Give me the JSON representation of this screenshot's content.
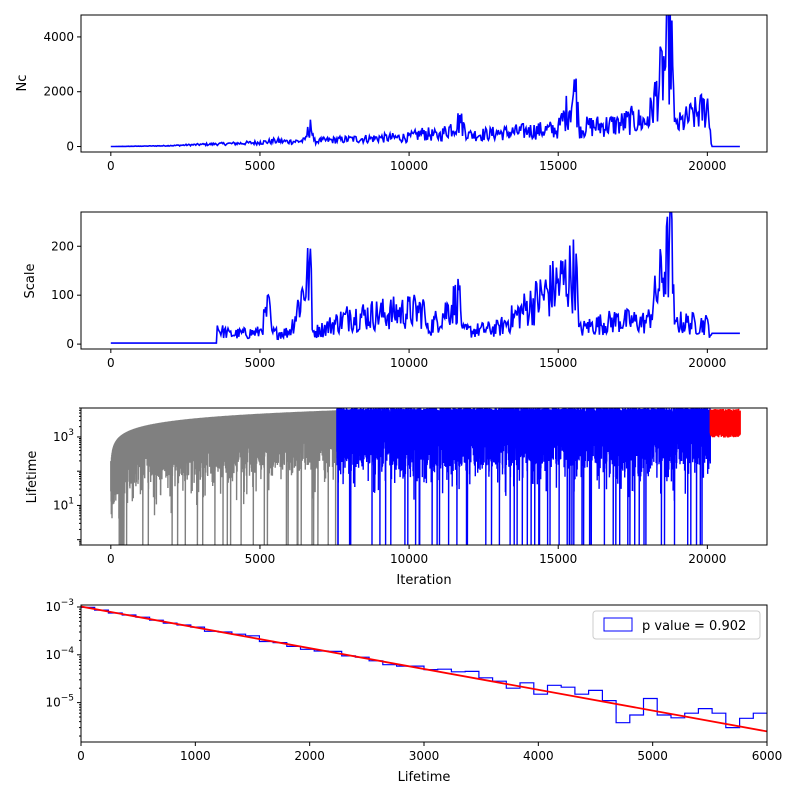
{
  "chart_data": [
    {
      "type": "line",
      "ylabel": "Nc",
      "xlim": [
        -1000,
        22000
      ],
      "ylim": [
        -200,
        4800
      ],
      "x_ticks": [
        0,
        5000,
        10000,
        15000,
        20000
      ],
      "y_ticks": [
        0,
        2000,
        4000
      ],
      "y_scale": "linear",
      "grid": false,
      "series": [
        {
          "color": "#0000ff",
          "x": [
            0,
            1000,
            2000,
            3000,
            3500,
            4000,
            5000,
            5500,
            6000,
            6500,
            6700,
            6800,
            7000,
            8000,
            9000,
            10000,
            10500,
            11000,
            11700,
            12000,
            13000,
            14000,
            15000,
            15600,
            15700,
            16000,
            17000,
            17500,
            18000,
            18800,
            18900,
            19000,
            19500,
            20000,
            20100,
            20150,
            21100
          ],
          "y": [
            0,
            15,
            40,
            90,
            110,
            130,
            180,
            250,
            220,
            260,
            980,
            230,
            260,
            330,
            380,
            420,
            600,
            470,
            1150,
            520,
            600,
            700,
            780,
            2480,
            800,
            900,
            1000,
            1200,
            1100,
            4600,
            900,
            950,
            1400,
            1750,
            600,
            0,
            0
          ]
        }
      ]
    },
    {
      "type": "line",
      "ylabel": "Scale",
      "xlim": [
        -1000,
        22000
      ],
      "ylim": [
        -10,
        270
      ],
      "x_ticks": [
        0,
        5000,
        10000,
        15000,
        20000
      ],
      "y_ticks": [
        0,
        100,
        200
      ],
      "y_scale": "linear",
      "grid": false,
      "series": [
        {
          "color": "#0000ff",
          "x": [
            0,
            3550,
            3560,
            4000,
            5000,
            5300,
            5400,
            6000,
            6700,
            6750,
            7000,
            8000,
            10500,
            10600,
            11700,
            11800,
            13000,
            15600,
            15700,
            16000,
            17000,
            18000,
            18800,
            18900,
            19000,
            20000,
            20150,
            21100
          ],
          "y": [
            2,
            2,
            38,
            25,
            30,
            95,
            28,
            30,
            195,
            30,
            35,
            70,
            85,
            35,
            120,
            32,
            40,
            185,
            35,
            45,
            60,
            55,
            255,
            40,
            55,
            50,
            22,
            22
          ]
        }
      ]
    },
    {
      "type": "line",
      "xlabel": "Iteration",
      "ylabel": "Lifetime",
      "xlim": [
        -1000,
        22000
      ],
      "y_log_range": [
        0.7,
        7000
      ],
      "x_ticks": [
        0,
        5000,
        10000,
        15000,
        20000
      ],
      "y_ticks": [
        {
          "value": 10,
          "base": "10",
          "exp": "1"
        },
        {
          "value": 1000,
          "base": "10",
          "exp": "3"
        }
      ],
      "y_scale": "log",
      "grid": false,
      "series": [
        {
          "color": "#808080",
          "x_range": [
            0,
            7580
          ],
          "upper": [
            1,
            6000
          ],
          "lower_min": 0.7
        },
        {
          "color": "#0000ff",
          "x_range": [
            7580,
            20100
          ],
          "upper_const": 6500,
          "lower_min": 0.7
        },
        {
          "color": "#ff0000",
          "x_range": [
            20100,
            21100
          ],
          "upper_const": 6000,
          "lower_min": 30
        }
      ]
    },
    {
      "type": "histogram",
      "xlabel": "Lifetime",
      "xlim": [
        0,
        6000
      ],
      "y_log_range": [
        1.5e-06,
        0.0011
      ],
      "x_ticks": [
        0,
        1000,
        2000,
        3000,
        4000,
        5000,
        6000
      ],
      "y_ticks": [
        {
          "value": 1e-05,
          "base": "10",
          "exp": "−5"
        },
        {
          "value": 0.0001,
          "base": "10",
          "exp": "−4"
        },
        {
          "value": 0.001,
          "base": "10",
          "exp": "−3"
        }
      ],
      "y_scale": "log",
      "grid": false,
      "legend": {
        "label": "p value = 0.902",
        "location": "top-right"
      },
      "histogram": {
        "color": "#0000ff",
        "bin_width": 120,
        "values": [
          0.00098,
          0.00086,
          0.00075,
          0.00068,
          0.00061,
          0.00053,
          0.00046,
          0.00042,
          0.00038,
          0.00031,
          0.0003,
          0.00027,
          0.00025,
          0.00019,
          0.00018,
          0.00015,
          0.00013,
          0.00012,
          0.000118,
          9.5e-05,
          8.9e-05,
          7.5e-05,
          6.2e-05,
          5.8e-05,
          5.8e-05,
          4.9e-05,
          5e-05,
          4.4e-05,
          4.5e-05,
          3.3e-05,
          2.8e-05,
          2e-05,
          2.6e-05,
          1.5e-05,
          2.3e-05,
          2.1e-05,
          1.5e-05,
          1.8e-05,
          1.1e-05,
          3.8e-06,
          5.5e-06,
          1.22e-05,
          5.5e-06,
          4.8e-06,
          6e-06,
          7.5e-06,
          6e-06,
          3e-06,
          4.7e-06,
          6e-06
        ]
      },
      "fit_line": {
        "color": "#ff0000",
        "x": [
          0,
          6000
        ],
        "y": [
          0.00102,
          2.5e-06
        ]
      }
    }
  ]
}
